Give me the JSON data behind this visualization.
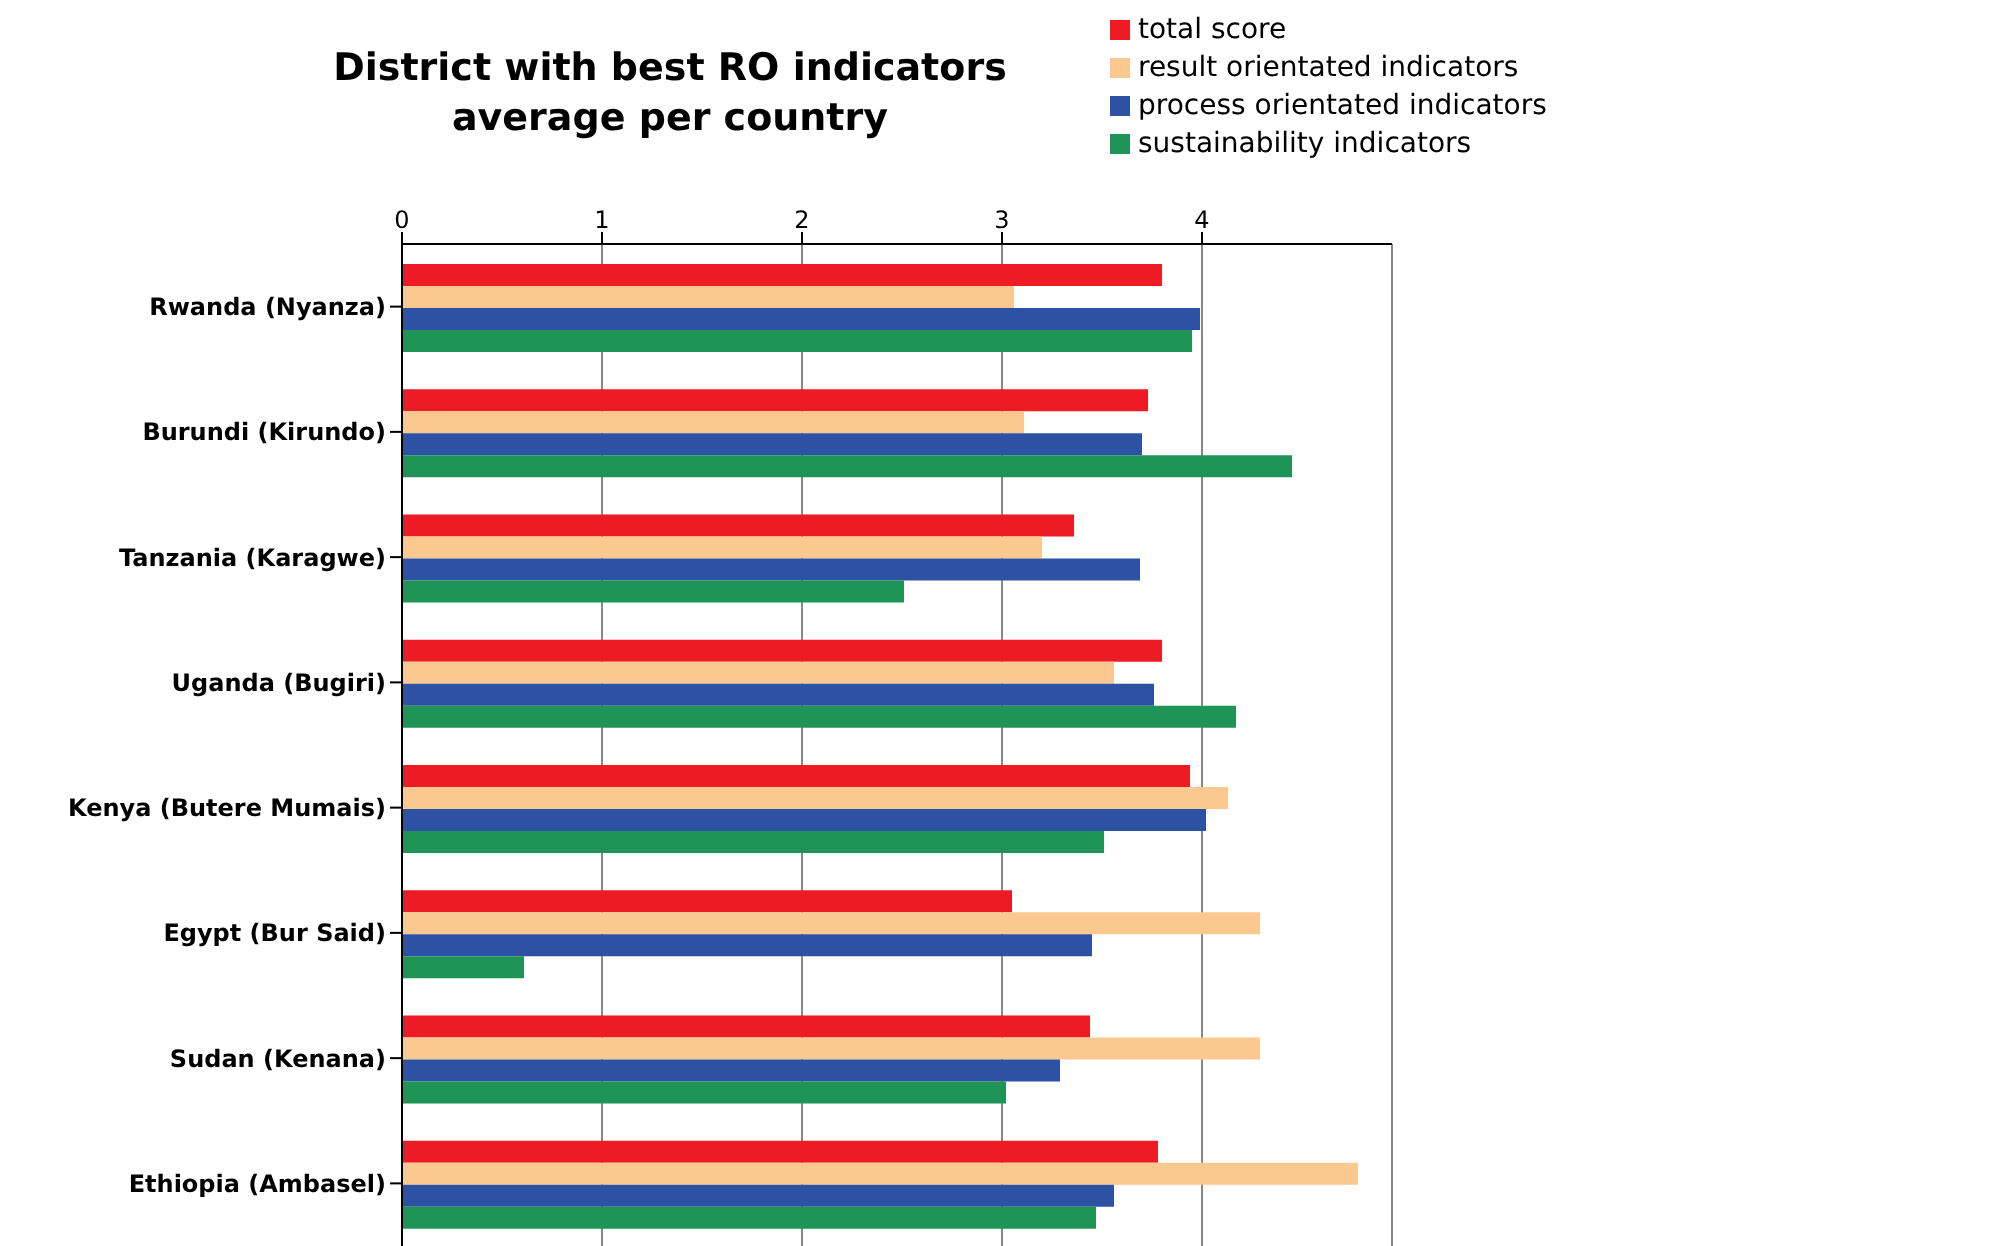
{
  "chart_data": {
    "type": "bar",
    "orientation": "horizontal",
    "title": "District with best RO indicators average per country",
    "categories": [
      "Rwanda (Nyanza)",
      "Burundi (Kirundo)",
      "Tanzania (Karagwe)",
      "Uganda (Bugiri)",
      "Kenya (Butere Mumais)",
      "Egypt (Bur Said)",
      "Sudan (Kenana)",
      "Ethiopia (Ambasel)"
    ],
    "series": [
      {
        "name": "total score",
        "color": "#ed1c24",
        "values": [
          3.8,
          3.73,
          3.36,
          3.8,
          3.94,
          3.05,
          3.44,
          3.78
        ]
      },
      {
        "name": "result orientated indicators",
        "color": "#fbc98f",
        "values": [
          3.06,
          3.11,
          3.2,
          3.56,
          4.13,
          4.29,
          4.29,
          4.78
        ]
      },
      {
        "name": "process orientated indicators",
        "color": "#2e52a3",
        "values": [
          3.99,
          3.7,
          3.69,
          3.76,
          4.02,
          3.45,
          3.29,
          3.56
        ]
      },
      {
        "name": "sustainability indicators",
        "color": "#1f9456",
        "values": [
          3.95,
          4.45,
          2.51,
          4.17,
          3.51,
          0.61,
          3.02,
          3.47
        ]
      }
    ],
    "xlim": [
      0,
      4.95
    ],
    "xticks": [
      0,
      1,
      2,
      3,
      4
    ],
    "grid": "x",
    "legend": "top right"
  }
}
